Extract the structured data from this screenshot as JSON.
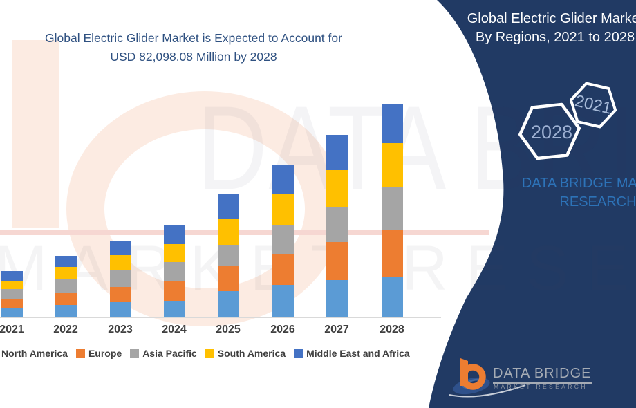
{
  "header": {
    "title_line1": "Global Electric Glider Market is Expected to Account for",
    "title_line2": "USD 82,098.08 Million by 2028"
  },
  "side_panel": {
    "panel_color": "#213a64",
    "title_line1": "Global Electric Glider Market",
    "title_line2": "By Regions, 2021 to 2028",
    "hexagon_front_label": "2028",
    "hexagon_back_label": "2021",
    "brand_line1": "DATA BRIDGE MARKET",
    "brand_line2": "RESEARCH"
  },
  "watermark": {
    "big_text": "DATA BRI",
    "sub_text": "MARKET RESEARCH"
  },
  "chart_data": {
    "type": "bar",
    "stacked": true,
    "unit": "USD Million",
    "categories": [
      "2021",
      "2022",
      "2023",
      "2024",
      "2025",
      "2026",
      "2027",
      "2028"
    ],
    "series": [
      {
        "name": "North America",
        "color": "#5B9BD5",
        "values": [
          3200,
          4530,
          5600,
          6130,
          9860,
          12260,
          14120,
          15460
        ]
      },
      {
        "name": "Europe",
        "color": "#ED7D31",
        "values": [
          3465,
          4800,
          5860,
          7460,
          9860,
          11730,
          14660,
          17860
        ]
      },
      {
        "name": "Asia Pacific",
        "color": "#A5A5A5",
        "values": [
          4000,
          5060,
          6400,
          7460,
          8000,
          11460,
          13330,
          16790
        ]
      },
      {
        "name": "South America",
        "color": "#FFC000",
        "values": [
          3200,
          4800,
          5860,
          6930,
          10130,
          11730,
          14390,
          16790
        ]
      },
      {
        "name": "Middle East and Africa",
        "color": "#4472C4",
        "values": [
          3730,
          4260,
          5330,
          7200,
          9330,
          11460,
          13590,
          15190
        ]
      }
    ],
    "totals_by_year": [
      17595,
      23450,
      29050,
      35180,
      47180,
      58640,
      70090,
      82098.08
    ],
    "values_estimated_from_pixels": true,
    "anchor_label": "USD 82,098.08 Million by 2028",
    "legend_position": "bottom",
    "axes": {
      "x_visible": true,
      "y_visible": false,
      "gridlines": false
    }
  },
  "footer_logo": {
    "brand": "DATA BRIDGE",
    "tagline": "MARKET RESEARCH"
  }
}
